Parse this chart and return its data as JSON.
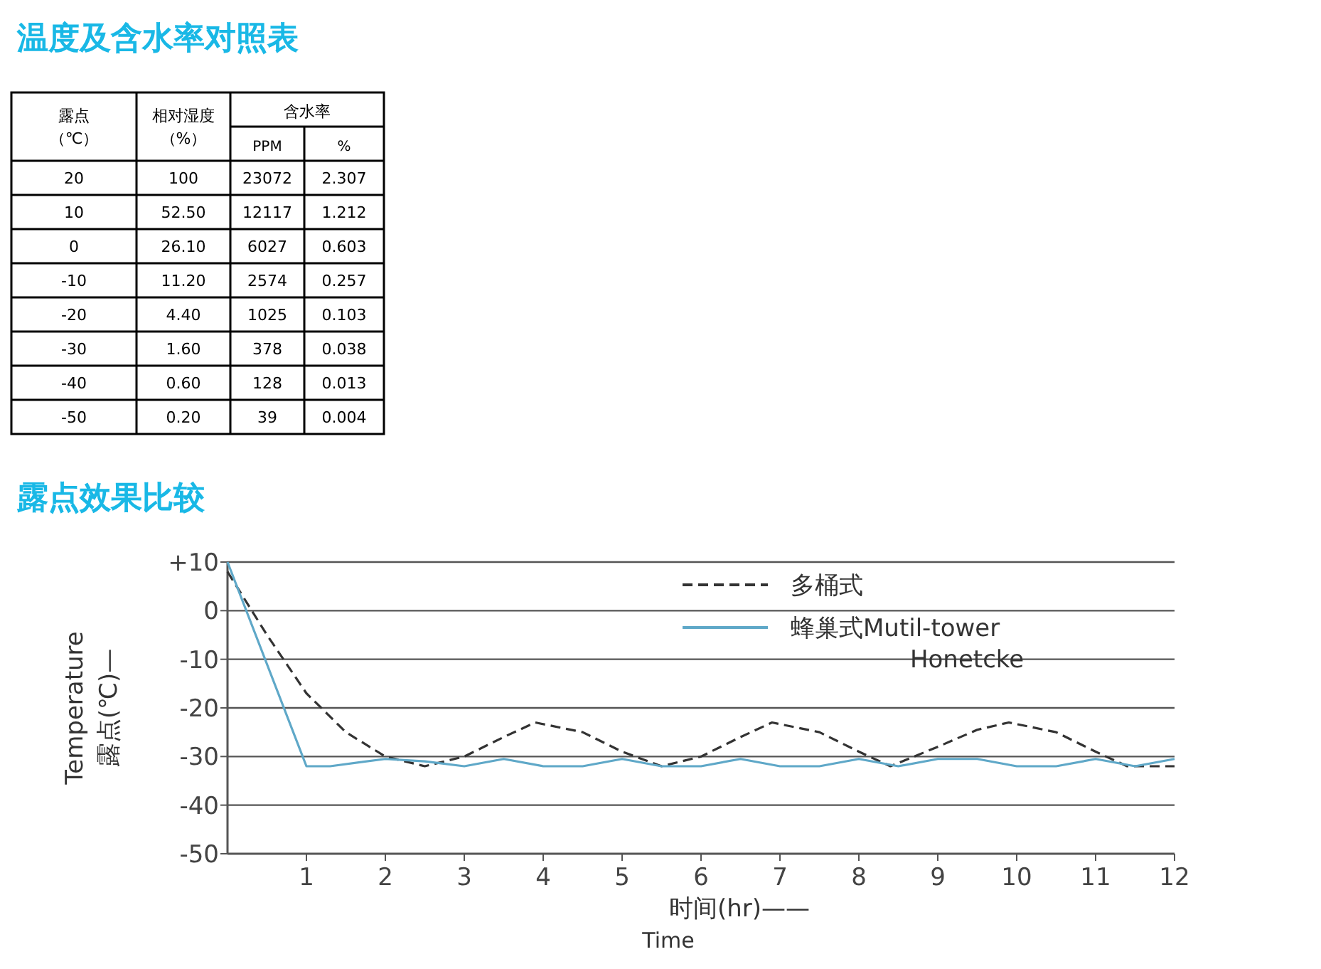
{
  "chart_data": [
    {
      "type": "heatmap",
      "title": "温度及含水率对照表",
      "ylabel": "露点（℃）",
      "annotations": [
        "含水率"
      ],
      "categories": [
        "相对湿度（%）",
        "PPM",
        "%"
      ],
      "y_categories": [
        "20",
        "10",
        "0",
        "-10",
        "-20",
        "-30",
        "-40",
        "-50"
      ],
      "cells": [
        [
          100,
          23072,
          2.307
        ],
        [
          52.5,
          12117,
          1.212
        ],
        [
          26.1,
          6027,
          0.603
        ],
        [
          11.2,
          2574,
          0.257
        ],
        [
          4.4,
          1025,
          0.103
        ],
        [
          1.6,
          378,
          0.038
        ],
        [
          0.6,
          128,
          0.013
        ],
        [
          0.2,
          39,
          0.004
        ]
      ],
      "cell_labels": [
        [
          "100",
          "23072",
          "2.307"
        ],
        [
          "52.50",
          "12117",
          "1.212"
        ],
        [
          "26.10",
          "6027",
          "0.603"
        ],
        [
          "11.20",
          "2574",
          "0.257"
        ],
        [
          "4.40",
          "1025",
          "0.103"
        ],
        [
          "1.60",
          "378",
          "0.038"
        ],
        [
          "0.60",
          "128",
          "0.013"
        ],
        [
          "0.20",
          "39",
          "0.004"
        ]
      ]
    },
    {
      "type": "line",
      "title": "露点效果比较",
      "xlabel": "时间(hr)—— Time",
      "ylabel": "Temperature 露点(℃)—",
      "xlim": [
        0,
        12
      ],
      "xticks": [
        1,
        2,
        3,
        4,
        5,
        6,
        7,
        8,
        9,
        10,
        11,
        12
      ],
      "ylim": [
        -50,
        10
      ],
      "yticks": [
        {
          "value": 10,
          "label": "+10"
        },
        0,
        -10,
        -20,
        -30,
        -40,
        -50
      ],
      "grid": "y",
      "legend": "top right",
      "marker": "none",
      "series": [
        {
          "name": "多桶式",
          "color": "#333333",
          "line_style": "dashed",
          "x": [
            0,
            0.5,
            1,
            1.5,
            2,
            2.5,
            3,
            3.5,
            3.9,
            4.5,
            5,
            5.5,
            6,
            6.5,
            6.9,
            7.5,
            8,
            8.4,
            9,
            9.5,
            9.9,
            10.5,
            11,
            11.4,
            12
          ],
          "values": [
            8,
            -5,
            -17,
            -25,
            -30,
            -32,
            -30,
            -26,
            -23,
            -25,
            -29,
            -32,
            -30,
            -26,
            -23,
            -25,
            -29,
            -32,
            -28,
            -24.5,
            -23,
            -25,
            -29,
            -32,
            -32
          ]
        },
        {
          "name": "蜂巢式Mutil-tower Honetcke",
          "color": "#5fa8c8",
          "line_style": "solid",
          "x": [
            0,
            1,
            1.3,
            2,
            2.5,
            3,
            3.5,
            4,
            4.5,
            5,
            5.5,
            6,
            6.5,
            7,
            7.5,
            8,
            8.5,
            9,
            9.5,
            10,
            10.5,
            11,
            11.5,
            12
          ],
          "values": [
            10,
            -32,
            -32,
            -30.5,
            -31,
            -32,
            -30.5,
            -32,
            -32,
            -30.5,
            -32,
            -32,
            -30.5,
            -32,
            -32,
            -30.5,
            -32,
            -30.5,
            -30.5,
            -32,
            -32,
            -30.5,
            -32,
            -30.5
          ]
        }
      ]
    }
  ]
}
